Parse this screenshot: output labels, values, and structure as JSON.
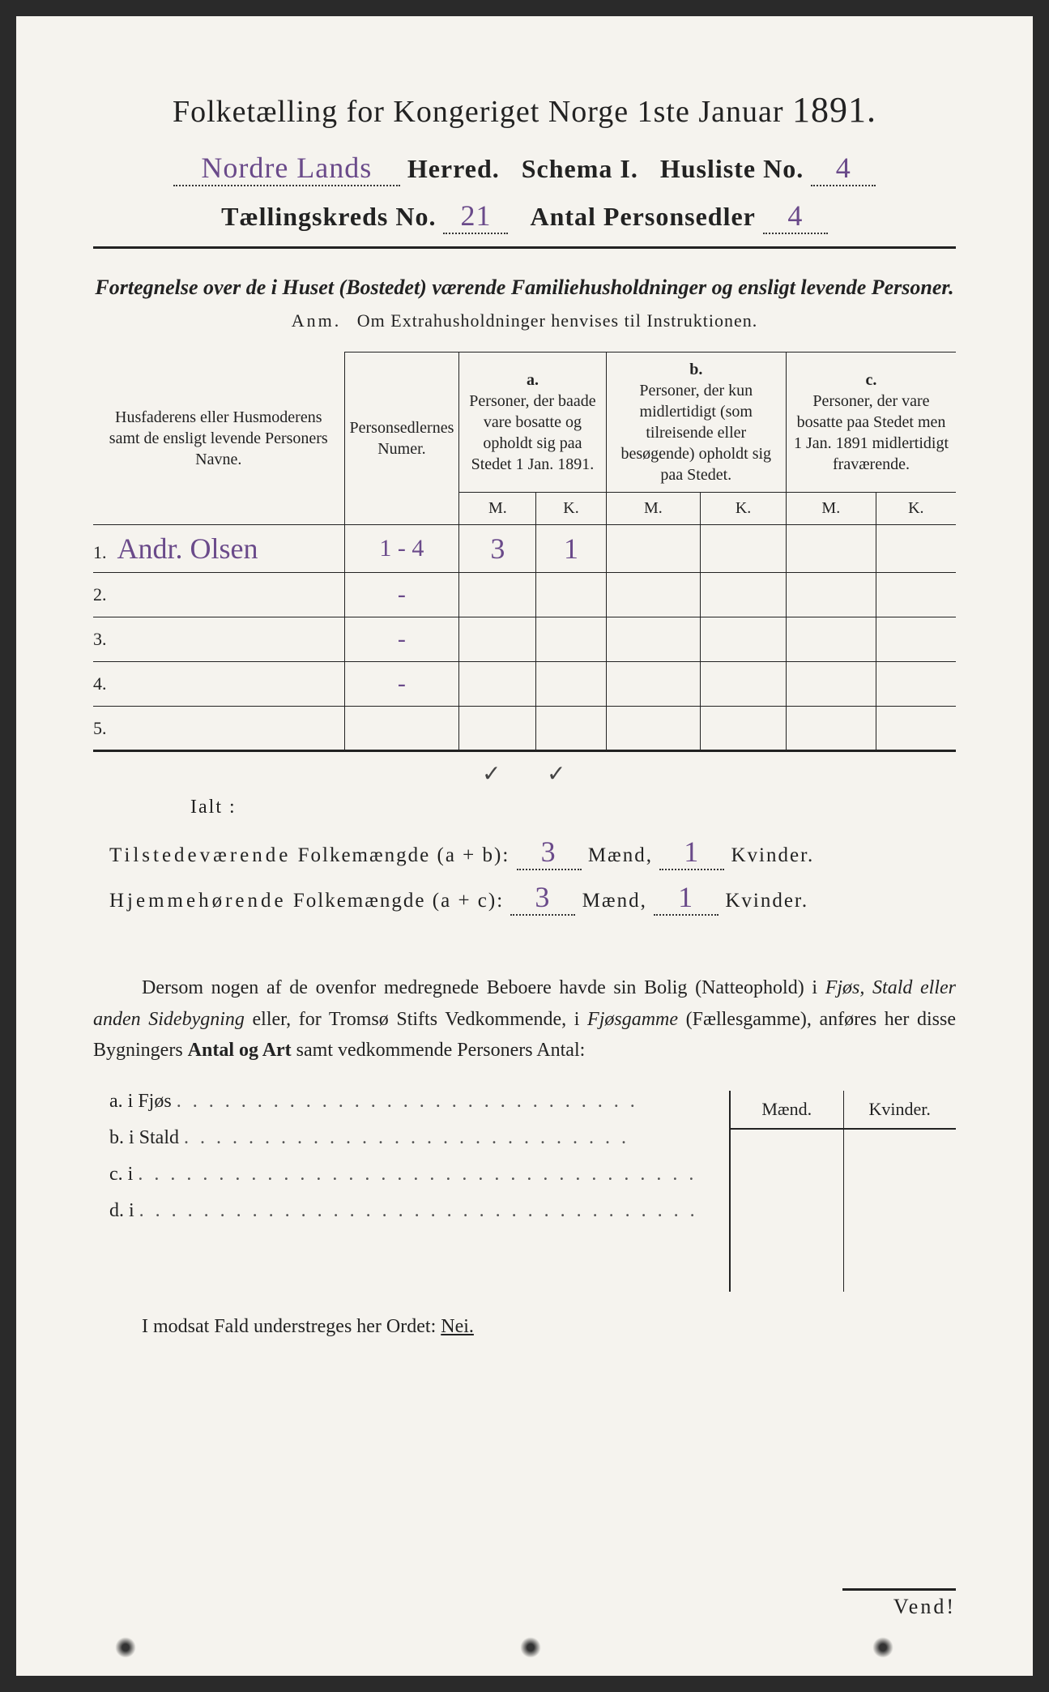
{
  "header": {
    "title_prefix": "Folketælling for Kongeriget Norge 1ste Januar",
    "title_year": "1891.",
    "herred_value": "Nordre Lands",
    "herred_label": "Herred.",
    "schema_label": "Schema I.",
    "husliste_label": "Husliste No.",
    "husliste_value": "4",
    "kreds_label": "Tællingskreds No.",
    "kreds_value": "21",
    "personsedler_label": "Antal Personsedler",
    "personsedler_value": "4"
  },
  "subtitle": "Fortegnelse over de i Huset (Bostedet) værende Familiehusholdninger og ensligt levende Personer.",
  "anm_label": "Anm.",
  "anm_text": "Om Extrahusholdninger henvises til Instruktionen.",
  "table": {
    "col_name": "Husfaderens eller Husmoderens samt de ensligt levende Personers Navne.",
    "col_num": "Personsedlernes Numer.",
    "col_a_label": "a.",
    "col_a_text": "Personer, der baade vare bosatte og opholdt sig paa Stedet 1 Jan. 1891.",
    "col_b_label": "b.",
    "col_b_text": "Personer, der kun midlertidigt (som tilreisende eller besøgende) opholdt sig paa Stedet.",
    "col_c_label": "c.",
    "col_c_text": "Personer, der vare bosatte paa Stedet men 1 Jan. 1891 midlertidigt fraværende.",
    "m": "M.",
    "k": "K.",
    "rows": [
      {
        "n": "1.",
        "name": "Andr. Olsen",
        "num": "1 - 4",
        "am": "3",
        "ak": "1",
        "bm": "",
        "bk": "",
        "cm": "",
        "ck": ""
      },
      {
        "n": "2.",
        "name": "",
        "num": "-",
        "am": "",
        "ak": "",
        "bm": "",
        "bk": "",
        "cm": "",
        "ck": ""
      },
      {
        "n": "3.",
        "name": "",
        "num": "-",
        "am": "",
        "ak": "",
        "bm": "",
        "bk": "",
        "cm": "",
        "ck": ""
      },
      {
        "n": "4.",
        "name": "",
        "num": "-",
        "am": "",
        "ak": "",
        "bm": "",
        "bk": "",
        "cm": "",
        "ck": ""
      },
      {
        "n": "5.",
        "name": "",
        "num": "",
        "am": "",
        "ak": "",
        "bm": "",
        "bk": "",
        "cm": "",
        "ck": ""
      }
    ],
    "check_a": "✓",
    "check_b": "✓"
  },
  "ialt": "Ialt :",
  "summary": {
    "line1_label": "Tilstedeværende",
    "line1_mid": "Folkemængde (a + b):",
    "line1_m": "3",
    "line1_k": "1",
    "line2_label": "Hjemmehørende",
    "line2_mid": "Folkemængde (a + c):",
    "line2_m": "3",
    "line2_k": "1",
    "maend": "Mænd,",
    "kvinder": "Kvinder."
  },
  "paragraph": {
    "p1": "Dersom nogen af de ovenfor medregnede Beboere havde sin Bolig (Natteophold) i ",
    "p2": "Fjøs, Stald eller anden Sidebygning",
    "p3": " eller, for Tromsø Stifts Vedkommende, i ",
    "p4": "Fjøsgamme",
    "p5": " (Fællesgamme), anføres her disse Bygningers ",
    "p6": "Antal og Art",
    "p7": " samt vedkommende Personers Antal:"
  },
  "mk": {
    "m": "Mænd.",
    "k": "Kvinder."
  },
  "buildings": {
    "a": "a.   i       Fjøs",
    "b": "b.   i       Stald",
    "c": "c.   i",
    "d": "d.   i"
  },
  "footer": {
    "text_pre": "I modsat Fald understreges her Ordet: ",
    "nei": "Nei."
  },
  "vend": "Vend!",
  "colors": {
    "page_bg": "#f5f3ee",
    "ink": "#222222",
    "handwriting": "#6a4a8a"
  }
}
